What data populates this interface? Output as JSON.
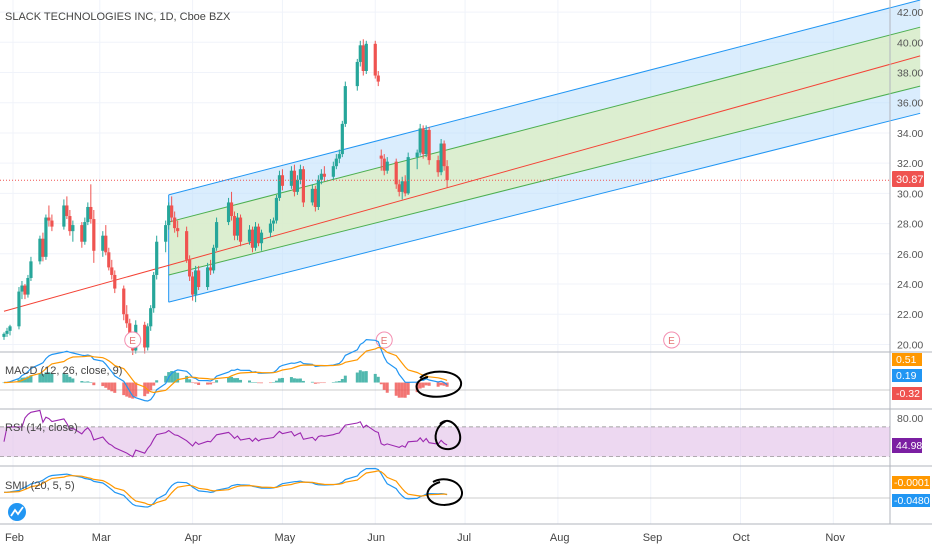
{
  "header": {
    "title": "SLACK TECHNOLOGIES INC, 1D, Cboe BZX"
  },
  "price_axis": {
    "ticks": [
      "42.00",
      "40.00",
      "38.00",
      "36.00",
      "34.00",
      "32.00",
      "30.00",
      "28.00",
      "26.00",
      "24.00",
      "22.00",
      "20.00"
    ],
    "last_price_label": "30.87"
  },
  "x_axis": {
    "months": [
      "Feb",
      "Mar",
      "Apr",
      "May",
      "Jun",
      "Jul",
      "Aug",
      "Sep",
      "Oct",
      "Nov"
    ]
  },
  "earnings": {
    "marker_label": "E"
  },
  "indicators": {
    "macd": {
      "label": "MACD (12, 26, close, 9)",
      "values": [
        "0.51",
        "0.19",
        "-0.32"
      ]
    },
    "rsi": {
      "label": "RSI (14, close)",
      "axis_label": "80.00",
      "value": "44.98"
    },
    "smii": {
      "label": "SMII (20, 5, 5)",
      "values": [
        "-0.0001",
        "-0.0480"
      ]
    }
  },
  "colors": {
    "up": "#26a69a",
    "down": "#ef5350",
    "channel_border": "#2196f3",
    "channel_fill": "#bbdefb",
    "inner_band": "#4caf50",
    "inner_fill": "#dcedc8",
    "median": "#f44336",
    "macd_line": "#2196f3",
    "signal_line": "#ff9800",
    "rsi_line": "#9c27b0",
    "rsi_band": "#e1bee7"
  },
  "chart_data": {
    "type": "candlestick",
    "title": "SLACK TECHNOLOGIES INC, 1D, Cboe BZX",
    "ylim": [
      19.5,
      42.8
    ],
    "last_price": 30.87,
    "candles": [
      [
        "2020-01-29",
        20.5,
        20.8,
        20.3,
        20.7
      ],
      [
        "2020-01-30",
        20.7,
        21.1,
        20.5,
        20.9
      ],
      [
        "2020-01-31",
        20.9,
        21.3,
        20.6,
        21.2
      ],
      [
        "2020-02-03",
        21.2,
        23.8,
        21.0,
        23.5
      ],
      [
        "2020-02-04",
        23.5,
        24.2,
        23.0,
        23.9
      ],
      [
        "2020-02-05",
        23.9,
        24.0,
        23.0,
        23.3
      ],
      [
        "2020-02-06",
        23.3,
        24.6,
        23.1,
        24.4
      ],
      [
        "2020-02-07",
        24.4,
        25.8,
        24.2,
        25.5
      ],
      [
        "2020-02-10",
        25.5,
        27.2,
        25.3,
        27.0
      ],
      [
        "2020-02-11",
        27.0,
        27.4,
        25.5,
        25.8
      ],
      [
        "2020-02-12",
        25.8,
        28.6,
        25.6,
        28.4
      ],
      [
        "2020-02-13",
        28.4,
        29.2,
        27.8,
        28.2
      ],
      [
        "2020-02-14",
        28.2,
        28.6,
        27.5,
        27.8
      ],
      [
        "2020-02-18",
        27.8,
        29.6,
        27.6,
        29.2
      ],
      [
        "2020-02-19",
        29.2,
        29.8,
        28.3,
        28.5
      ],
      [
        "2020-02-20",
        28.5,
        28.9,
        27.2,
        27.5
      ],
      [
        "2020-02-21",
        27.5,
        28.2,
        26.8,
        27.9
      ],
      [
        "2020-02-24",
        27.9,
        28.1,
        26.4,
        26.8
      ],
      [
        "2020-02-25",
        26.8,
        28.4,
        26.6,
        28.1
      ],
      [
        "2020-02-26",
        28.1,
        29.4,
        27.9,
        29.1
      ],
      [
        "2020-02-27",
        29.1,
        30.6,
        28.0,
        28.3
      ],
      [
        "2020-02-28",
        28.3,
        28.9,
        25.4,
        26.2
      ],
      [
        "2020-03-02",
        26.2,
        27.5,
        25.8,
        27.2
      ],
      [
        "2020-03-03",
        27.2,
        27.9,
        25.9,
        26.1
      ],
      [
        "2020-03-04",
        26.1,
        26.4,
        24.9,
        25.1
      ],
      [
        "2020-03-05",
        25.1,
        25.6,
        24.3,
        24.6
      ],
      [
        "2020-03-06",
        24.6,
        24.9,
        23.4,
        23.7
      ],
      [
        "2020-03-09",
        23.7,
        23.9,
        21.6,
        22.0
      ],
      [
        "2020-03-10",
        22.0,
        22.6,
        21.1,
        21.4
      ],
      [
        "2020-03-11",
        21.4,
        21.7,
        20.2,
        20.5
      ],
      [
        "2020-03-12",
        20.5,
        20.8,
        19.3,
        19.6
      ],
      [
        "2020-03-13",
        19.6,
        21.6,
        19.4,
        21.3
      ],
      [
        "2020-03-16",
        21.3,
        21.5,
        19.4,
        19.8
      ],
      [
        "2020-03-17",
        19.8,
        21.4,
        19.6,
        21.2
      ],
      [
        "2020-03-18",
        21.2,
        22.6,
        20.9,
        22.4
      ],
      [
        "2020-03-19",
        22.4,
        24.8,
        22.1,
        24.6
      ],
      [
        "2020-03-20",
        24.6,
        27.2,
        24.3,
        26.8
      ],
      [
        "2020-03-23",
        26.8,
        28.2,
        26.1,
        27.9
      ],
      [
        "2020-03-24",
        27.9,
        29.4,
        27.6,
        29.2
      ],
      [
        "2020-03-25",
        29.2,
        29.8,
        28.1,
        28.4
      ],
      [
        "2020-03-26",
        28.4,
        28.8,
        27.4,
        27.7
      ],
      [
        "2020-03-27",
        27.7,
        28.2,
        27.1,
        27.5
      ],
      [
        "2020-03-30",
        27.5,
        27.8,
        25.4,
        25.6
      ],
      [
        "2020-03-31",
        25.6,
        25.9,
        24.2,
        24.5
      ],
      [
        "2020-04-01",
        24.5,
        24.8,
        22.9,
        23.3
      ],
      [
        "2020-04-02",
        23.3,
        25.2,
        22.8,
        24.9
      ],
      [
        "2020-04-03",
        24.9,
        25.2,
        23.6,
        23.8
      ],
      [
        "2020-04-06",
        23.8,
        25.4,
        23.6,
        25.1
      ],
      [
        "2020-04-07",
        25.1,
        25.6,
        24.6,
        24.9
      ],
      [
        "2020-04-08",
        24.9,
        26.6,
        24.7,
        26.4
      ],
      [
        "2020-04-09",
        26.4,
        28.4,
        26.2,
        28.1
      ],
      [
        "2020-04-13",
        28.1,
        29.7,
        27.9,
        29.4
      ],
      [
        "2020-04-14",
        29.4,
        30.1,
        28.2,
        28.5
      ],
      [
        "2020-04-15",
        28.5,
        28.8,
        26.9,
        27.2
      ],
      [
        "2020-04-16",
        27.2,
        28.7,
        26.9,
        28.4
      ],
      [
        "2020-04-17",
        28.4,
        28.6,
        26.5,
        26.8
      ],
      [
        "2020-04-20",
        26.8,
        27.9,
        26.6,
        27.6
      ],
      [
        "2020-04-21",
        27.6,
        27.8,
        26.1,
        26.4
      ],
      [
        "2020-04-22",
        26.4,
        28.1,
        26.2,
        27.8
      ],
      [
        "2020-04-23",
        27.8,
        28.0,
        26.5,
        26.7
      ],
      [
        "2020-04-24",
        26.7,
        27.6,
        26.2,
        27.4
      ],
      [
        "2020-04-27",
        27.4,
        28.3,
        27.1,
        28.0
      ],
      [
        "2020-04-28",
        28.0,
        28.4,
        27.5,
        28.2
      ],
      [
        "2020-04-29",
        28.2,
        29.9,
        28.0,
        29.7
      ],
      [
        "2020-04-30",
        29.7,
        31.5,
        29.5,
        31.2
      ],
      [
        "2020-05-01",
        31.2,
        31.6,
        30.2,
        30.5
      ],
      [
        "2020-05-04",
        30.5,
        31.8,
        30.3,
        31.5
      ],
      [
        "2020-05-05",
        31.5,
        31.9,
        29.8,
        30.1
      ],
      [
        "2020-05-06",
        30.1,
        31.2,
        29.9,
        30.9
      ],
      [
        "2020-05-07",
        30.9,
        31.9,
        30.6,
        31.6
      ],
      [
        "2020-05-08",
        31.6,
        31.8,
        29.1,
        29.4
      ],
      [
        "2020-05-11",
        29.4,
        30.6,
        29.2,
        30.3
      ],
      [
        "2020-05-12",
        30.3,
        30.5,
        28.8,
        29.1
      ],
      [
        "2020-05-13",
        29.1,
        31.2,
        28.9,
        30.9
      ],
      [
        "2020-05-14",
        30.9,
        31.6,
        30.6,
        31.3
      ],
      [
        "2020-05-15",
        31.3,
        31.8,
        30.8,
        31.1
      ],
      [
        "2020-05-18",
        31.1,
        32.1,
        30.9,
        31.8
      ],
      [
        "2020-05-19",
        31.8,
        32.6,
        31.6,
        32.3
      ],
      [
        "2020-05-20",
        32.3,
        32.9,
        32.0,
        32.6
      ],
      [
        "2020-05-21",
        32.6,
        34.8,
        32.4,
        34.6
      ],
      [
        "2020-05-22",
        34.6,
        37.4,
        34.4,
        37.1
      ],
      [
        "2020-05-26",
        37.1,
        38.9,
        36.8,
        38.7
      ],
      [
        "2020-05-27",
        38.7,
        40.1,
        38.4,
        39.8
      ],
      [
        "2020-05-28",
        39.8,
        40.2,
        37.8,
        38.1
      ],
      [
        "2020-05-29",
        38.1,
        40.1,
        37.9,
        39.9
      ],
      [
        "2020-06-01",
        39.9,
        40.1,
        37.6,
        37.8
      ],
      [
        "2020-06-02",
        37.8,
        38.1,
        37.1,
        37.4
      ],
      [
        "2020-06-03",
        32.5,
        32.9,
        31.5,
        32.3
      ],
      [
        "2020-06-04",
        32.3,
        32.6,
        31.2,
        31.5
      ],
      [
        "2020-06-05",
        31.5,
        32.4,
        31.3,
        32.1
      ],
      [
        "2020-06-08",
        32.1,
        32.3,
        30.3,
        30.6
      ],
      [
        "2020-06-09",
        30.6,
        30.9,
        29.8,
        30.1
      ],
      [
        "2020-06-10",
        30.1,
        31.1,
        29.6,
        30.8
      ],
      [
        "2020-06-11",
        30.8,
        31.2,
        29.8,
        30.0
      ],
      [
        "2020-06-12",
        30.0,
        32.7,
        29.9,
        32.4
      ],
      [
        "2020-06-15",
        32.4,
        32.9,
        31.6,
        32.7
      ],
      [
        "2020-06-16",
        32.7,
        34.6,
        32.5,
        34.3
      ],
      [
        "2020-06-17",
        34.3,
        34.5,
        32.3,
        32.6
      ],
      [
        "2020-06-18",
        32.6,
        34.5,
        32.4,
        34.2
      ],
      [
        "2020-06-19",
        34.2,
        34.4,
        31.9,
        32.2
      ],
      [
        "2020-06-22",
        32.2,
        32.5,
        31.1,
        31.4
      ],
      [
        "2020-06-23",
        31.4,
        33.6,
        31.2,
        33.3
      ],
      [
        "2020-06-24",
        33.3,
        33.5,
        31.5,
        31.8
      ],
      [
        "2020-06-25",
        31.8,
        32.2,
        30.4,
        30.87
      ]
    ],
    "channel": {
      "outer": {
        "start": {
          "date": "2020-03-24",
          "upper": 29.9,
          "lower": 22.8
        },
        "end": {
          "date": "2020-11-30",
          "upper": 42.8,
          "lower": 35.3
        }
      },
      "inner": {
        "start": {
          "date": "2020-03-24",
          "upper": 28.1,
          "lower": 24.6
        },
        "end": {
          "date": "2020-11-30",
          "upper": 41.0,
          "lower": 37.1
        }
      },
      "median": {
        "start": {
          "date": "2020-01-29",
          "value": 22.2
        },
        "end": {
          "date": "2020-11-30",
          "value": 39.1
        }
      }
    },
    "earnings_dates": [
      "2020-03-12",
      "2020-06-04",
      "2020-09-08"
    ],
    "indicators": {
      "macd": {
        "name": "MACD (12, 26, close, 9)",
        "ylim": [
          -1.6,
          1.8
        ],
        "last": {
          "signal": 0.51,
          "macd": 0.19,
          "histogram": -0.32
        }
      },
      "rsi": {
        "name": "RSI (14, close)",
        "upper": 70,
        "lower": 30,
        "ylim": [
          20,
          90
        ],
        "last": 44.98
      },
      "smii": {
        "name": "SMII (20, 5, 5)",
        "ylim": [
          -0.6,
          0.45
        ],
        "last": {
          "smi": -0.0001,
          "signal": -0.048
        }
      }
    }
  }
}
